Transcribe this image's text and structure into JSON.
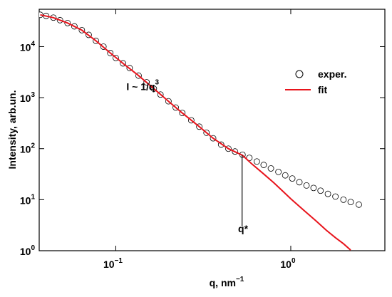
{
  "chart_data": {
    "type": "scatter_line",
    "xlabel": "q, nm",
    "xlabel_power": "−1",
    "ylabel": "Intensity, arb.un.",
    "annotations": [
      {
        "text": "I ~ 1/q",
        "power": "3",
        "x": 0.115,
        "y": 1400
      },
      {
        "text": "q*",
        "x": 0.5,
        "y": 2.3
      }
    ],
    "marker_line": {
      "x": 0.527,
      "y": [
        75,
        3.0
      ]
    },
    "xscale": "log",
    "yscale": "log",
    "xlim": [
      0.0365,
      3.45
    ],
    "ylim": [
      1,
      54000
    ],
    "xticks": [
      {
        "value": 0.1,
        "label": "10",
        "power": "−1"
      },
      {
        "value": 1,
        "label": "10",
        "power": "0"
      }
    ],
    "yticks": [
      {
        "value": 1,
        "label": "10",
        "power": "0"
      },
      {
        "value": 10,
        "label": "10",
        "power": "1"
      },
      {
        "value": 100,
        "label": "10",
        "power": "2"
      },
      {
        "value": 1000,
        "label": "10",
        "power": "3"
      },
      {
        "value": 10000,
        "label": "10",
        "power": "4"
      }
    ],
    "legend": "upper right",
    "series": [
      {
        "name": "exper.",
        "kind": "scatter",
        "color": "#000000",
        "x": [
          0.037,
          0.04,
          0.044,
          0.048,
          0.053,
          0.058,
          0.064,
          0.07,
          0.077,
          0.085,
          0.093,
          0.1,
          0.11,
          0.12,
          0.135,
          0.15,
          0.165,
          0.18,
          0.2,
          0.22,
          0.24,
          0.27,
          0.3,
          0.33,
          0.36,
          0.4,
          0.44,
          0.48,
          0.53,
          0.58,
          0.64,
          0.7,
          0.77,
          0.85,
          0.93,
          1.02,
          1.12,
          1.23,
          1.35,
          1.48,
          1.63,
          1.8,
          2.0,
          2.2,
          2.45
        ],
        "values": [
          42000,
          40000,
          37000,
          33000,
          29000,
          25000,
          21000,
          17000,
          13000,
          10000,
          7500,
          6000,
          4700,
          3800,
          2700,
          2000,
          1500,
          1150,
          850,
          640,
          500,
          360,
          270,
          205,
          160,
          120,
          100,
          88,
          76,
          66,
          56,
          48,
          41,
          35,
          30,
          26,
          22,
          19,
          17,
          15,
          13,
          11.5,
          10,
          9,
          8
        ]
      },
      {
        "name": "fit",
        "kind": "line",
        "color": "#e8141c",
        "x": [
          0.037,
          0.044,
          0.053,
          0.064,
          0.077,
          0.093,
          0.11,
          0.135,
          0.165,
          0.2,
          0.24,
          0.3,
          0.36,
          0.44,
          0.53,
          0.6,
          0.7,
          0.8,
          0.9,
          1.0,
          1.2,
          1.4,
          1.6,
          1.8,
          2.0,
          2.2
        ],
        "values": [
          42000,
          37000,
          29000,
          21000,
          13000,
          7500,
          4700,
          2700,
          1500,
          850,
          500,
          270,
          160,
          100,
          74,
          50,
          32,
          21.5,
          14.7,
          10.4,
          6.0,
          3.8,
          2.5,
          1.8,
          1.37,
          1.03
        ]
      }
    ]
  }
}
